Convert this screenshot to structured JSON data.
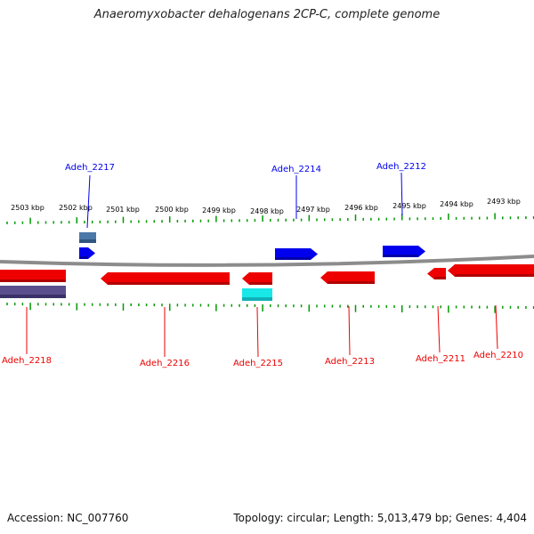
{
  "title": "Anaeromyxobacter dehalogenans 2CP-C, complete genome",
  "footer": {
    "accession": "Accession: NC_007760",
    "summary": "Topology: circular; Length: 5,013,479 bp; Genes: 4,404"
  },
  "ruler": {
    "unit": "kbp",
    "labels": [
      "2503 kbp",
      "2502 kbp",
      "2501 kbp",
      "2500 kbp",
      "2499 kbp",
      "2498 kbp",
      "2497 kbp",
      "2496 kbp",
      "2495 kbp",
      "2494 kbp",
      "2493 kbp"
    ]
  },
  "colors": {
    "forward_gene": "#0000ee",
    "reverse_gene": "#ee0000",
    "backbone": "#888888",
    "tick": "#009900",
    "tick_label": "#000000"
  },
  "genes": [
    {
      "name": "Adeh_2218",
      "strand": "reverse"
    },
    {
      "name": "Adeh_2217",
      "strand": "forward"
    },
    {
      "name": "Adeh_2216",
      "strand": "reverse"
    },
    {
      "name": "Adeh_2215",
      "strand": "reverse"
    },
    {
      "name": "Adeh_2214",
      "strand": "forward"
    },
    {
      "name": "Adeh_2213",
      "strand": "reverse"
    },
    {
      "name": "Adeh_2212",
      "strand": "forward"
    },
    {
      "name": "Adeh_2211",
      "strand": "reverse"
    },
    {
      "name": "Adeh_2210",
      "strand": "reverse"
    }
  ]
}
